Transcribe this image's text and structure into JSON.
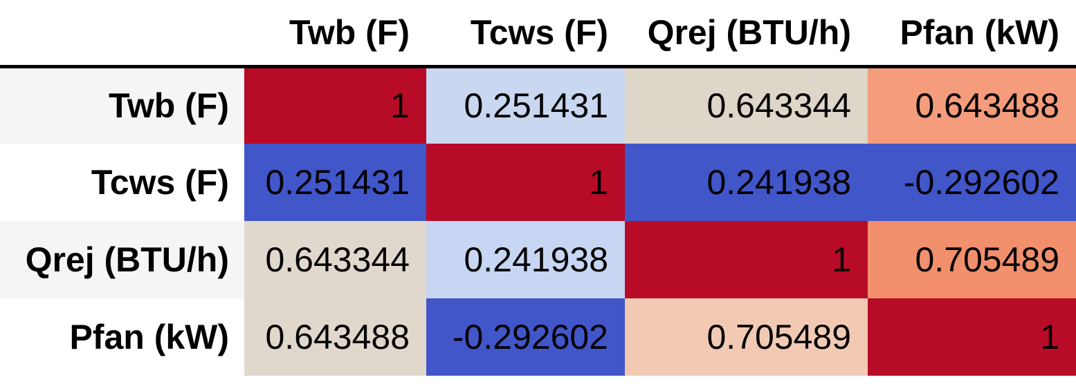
{
  "table": {
    "corner": "",
    "columns": [
      "Twb (F)",
      "Tcws (F)",
      "Qrej (BTU/h)",
      "Pfan (kW)"
    ],
    "rows": [
      {
        "label": "Twb (F)",
        "label_bg": "#f5f5f5",
        "cells": [
          {
            "text": "1",
            "bg": "#b80b27"
          },
          {
            "text": "0.251431",
            "bg": "#c9d7f0"
          },
          {
            "text": "0.643344",
            "bg": "#ded6c9"
          },
          {
            "text": "0.643488",
            "bg": "#f49c7b"
          }
        ]
      },
      {
        "label": "Tcws (F)",
        "label_bg": "#ffffff",
        "cells": [
          {
            "text": "0.251431",
            "bg": "#4156c9"
          },
          {
            "text": "1",
            "bg": "#b80b27"
          },
          {
            "text": "0.241938",
            "bg": "#4156c9"
          },
          {
            "text": "-0.292602",
            "bg": "#4156c9"
          }
        ]
      },
      {
        "label": "Qrej (BTU/h)",
        "label_bg": "#f5f5f5",
        "cells": [
          {
            "text": "0.643344",
            "bg": "#e0d8cd"
          },
          {
            "text": "0.241938",
            "bg": "#c7d6f2"
          },
          {
            "text": "1",
            "bg": "#b80b27"
          },
          {
            "text": "0.705489",
            "bg": "#f28f6d"
          }
        ]
      },
      {
        "label": "Pfan (kW)",
        "label_bg": "#ffffff",
        "cells": [
          {
            "text": "0.643488",
            "bg": "#e0d8cc"
          },
          {
            "text": "-0.292602",
            "bg": "#4156c9"
          },
          {
            "text": "0.705489",
            "bg": "#f2cab3"
          },
          {
            "text": "1",
            "bg": "#b80b27"
          }
        ]
      }
    ],
    "header_rule_color": "#000000"
  },
  "chart_data": {
    "type": "heatmap",
    "title": "",
    "variables": [
      "Twb (F)",
      "Tcws (F)",
      "Qrej (BTU/h)",
      "Pfan (kW)"
    ],
    "matrix": [
      [
        1,
        0.251431,
        0.643344,
        0.643488
      ],
      [
        0.251431,
        1,
        0.241938,
        -0.292602
      ],
      [
        0.643344,
        0.241938,
        1,
        0.705489
      ],
      [
        0.643488,
        -0.292602,
        0.705489,
        1
      ]
    ],
    "value_range": [
      -0.292602,
      1
    ],
    "colormap": "coolwarm, normalized per column",
    "colormap_low": "#4156c9",
    "colormap_mid": "#dddddd",
    "colormap_high": "#b80b27",
    "legend": "none",
    "grid": "off"
  }
}
